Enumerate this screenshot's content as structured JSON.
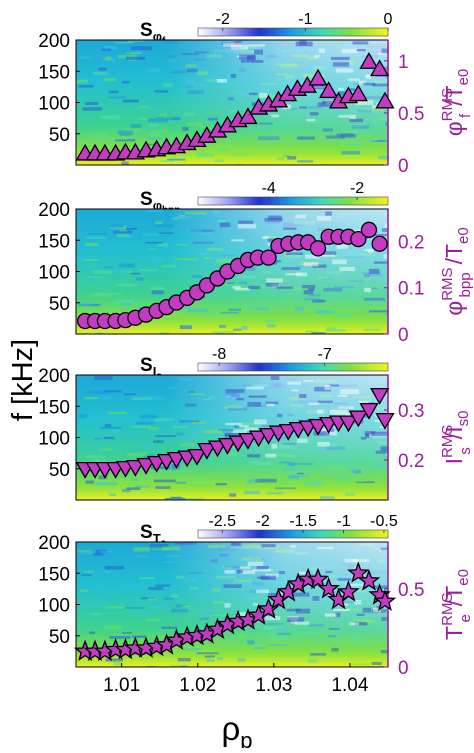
{
  "figure": {
    "ylabel": "f [kHz]",
    "xlabel": "ρ",
    "xlabel_sub": "p"
  },
  "chart_data": [
    {
      "type": "heatmap",
      "colorbar_label": "S",
      "colorbar_label_sub": "φ",
      "colorbar_label_subsub": "f",
      "colorbar_ticks": [
        "-2",
        "-1",
        "0"
      ],
      "colorbar_range": [
        -2.3,
        0
      ],
      "ylim": [
        0,
        200
      ],
      "yticks": [
        "200",
        "150",
        "100",
        "50"
      ],
      "xlim": [
        1.004,
        1.045
      ],
      "xticks": [],
      "y2label": "φ",
      "y2label_sup": "RMS",
      "y2label_sub": "f",
      "y2label_tail": "/T",
      "y2label_tail_sub": "e0",
      "y2lim": [
        0,
        1.2
      ],
      "y2ticks": [
        "1",
        "0.5",
        "0"
      ],
      "marker": "triangle-up",
      "marker_color": "#c23bc2",
      "axis_color": "#9b219b",
      "series": [
        {
          "x": [
            1.0052,
            1.0065,
            1.0078,
            1.0092,
            1.0105,
            1.0118,
            1.0132,
            1.0146,
            1.0159,
            1.0172,
            1.0186,
            1.0199,
            1.0212,
            1.0226,
            1.0239,
            1.0253,
            1.0266,
            1.028,
            1.0293,
            1.0306,
            1.0318,
            1.0331,
            1.0344,
            1.0358,
            1.0372,
            1.0385,
            1.0398,
            1.0411,
            1.0425,
            1.0439,
            1.0446
          ],
          "y": [
            0.11,
            0.11,
            0.11,
            0.11,
            0.12,
            0.12,
            0.14,
            0.15,
            0.17,
            0.18,
            0.21,
            0.24,
            0.28,
            0.33,
            0.38,
            0.43,
            0.46,
            0.55,
            0.58,
            0.62,
            0.68,
            0.73,
            0.76,
            0.83,
            0.71,
            0.61,
            0.66,
            0.68,
            0.99,
            0.92,
            0.61
          ]
        }
      ]
    },
    {
      "type": "heatmap",
      "colorbar_label": "S",
      "colorbar_label_sub": "φ",
      "colorbar_label_subsub": "bpp",
      "colorbar_ticks": [
        "-4",
        "-2"
      ],
      "colorbar_range": [
        -5.6,
        -1.3
      ],
      "ylim": [
        0,
        200
      ],
      "yticks": [
        "200",
        "150",
        "100",
        "50"
      ],
      "xlim": [
        1.004,
        1.045
      ],
      "xticks": [],
      "y2label": "φ",
      "y2label_sup": "RMS",
      "y2label_sub": "bpp",
      "y2label_tail": "/T",
      "y2label_tail_sub": "e0",
      "y2lim": [
        0,
        0.27
      ],
      "y2ticks": [
        "0.2",
        "0.1",
        "0"
      ],
      "marker": "circle",
      "marker_color": "#c23bc2",
      "axis_color": "#9b219b",
      "series": [
        {
          "x": [
            1.0052,
            1.0065,
            1.0078,
            1.0092,
            1.0105,
            1.0118,
            1.0132,
            1.0146,
            1.0159,
            1.0172,
            1.0186,
            1.0199,
            1.0212,
            1.0226,
            1.0239,
            1.0253,
            1.0266,
            1.0279,
            1.0293,
            1.0306,
            1.0319,
            1.0332,
            1.0345,
            1.0358,
            1.0372,
            1.0385,
            1.0398,
            1.0411,
            1.0425,
            1.0439
          ],
          "y": [
            0.028,
            0.028,
            0.028,
            0.028,
            0.03,
            0.035,
            0.042,
            0.05,
            0.058,
            0.068,
            0.078,
            0.09,
            0.105,
            0.12,
            0.135,
            0.147,
            0.16,
            0.165,
            0.165,
            0.19,
            0.195,
            0.198,
            0.198,
            0.185,
            0.21,
            0.21,
            0.21,
            0.205,
            0.225,
            0.195
          ]
        }
      ]
    },
    {
      "type": "heatmap",
      "colorbar_label": "S",
      "colorbar_label_sub": "I",
      "colorbar_label_subsub": "s",
      "colorbar_ticks": [
        "-8",
        "-7"
      ],
      "colorbar_range": [
        -8.2,
        -6.4
      ],
      "ylim": [
        0,
        200
      ],
      "yticks": [
        "200",
        "150",
        "100",
        "50"
      ],
      "xlim": [
        1.004,
        1.045
      ],
      "xticks": [],
      "y2label": "I",
      "y2label_sup": "RMS",
      "y2label_sub": "s",
      "y2label_tail": "/I",
      "y2label_tail_sub": "s0",
      "y2lim": [
        0.12,
        0.37
      ],
      "y2ticks": [
        "0.3",
        "0.2"
      ],
      "marker": "triangle-down",
      "marker_color": "#c23bc2",
      "axis_color": "#9b219b",
      "series": [
        {
          "x": [
            1.0052,
            1.0065,
            1.0078,
            1.0092,
            1.0105,
            1.0118,
            1.0132,
            1.0146,
            1.0159,
            1.0172,
            1.0186,
            1.0199,
            1.0212,
            1.0226,
            1.0239,
            1.0253,
            1.0266,
            1.028,
            1.0293,
            1.0306,
            1.0319,
            1.0332,
            1.0345,
            1.0358,
            1.0372,
            1.0385,
            1.0398,
            1.0411,
            1.0425,
            1.0439,
            1.0446
          ],
          "y": [
            0.182,
            0.182,
            0.182,
            0.182,
            0.184,
            0.186,
            0.19,
            0.194,
            0.198,
            0.202,
            0.205,
            0.208,
            0.22,
            0.225,
            0.23,
            0.235,
            0.24,
            0.245,
            0.25,
            0.255,
            0.258,
            0.262,
            0.265,
            0.268,
            0.272,
            0.275,
            0.275,
            0.285,
            0.3,
            0.33,
            0.28
          ]
        }
      ]
    },
    {
      "type": "heatmap",
      "colorbar_label": "S",
      "colorbar_label_sub": "T",
      "colorbar_label_subsub": "e",
      "colorbar_ticks": [
        "-2.5",
        "-2",
        "-1.5",
        "-1",
        "-0.5"
      ],
      "colorbar_range": [
        -2.8,
        -0.45
      ],
      "ylim": [
        0,
        200
      ],
      "yticks": [
        "200",
        "150",
        "100",
        "50"
      ],
      "xlim": [
        1.004,
        1.045
      ],
      "xticks": [
        "1.01",
        "1.02",
        "1.03",
        "1.04"
      ],
      "y2label": "T",
      "y2label_sup": "RMS",
      "y2label_sub": "e",
      "y2label_tail": "/T",
      "y2label_tail_sub": "e0",
      "y2lim": [
        0,
        0.8
      ],
      "y2ticks": [
        "0.5",
        "0"
      ],
      "marker": "star",
      "marker_color": "#c23bc2",
      "axis_color": "#9b219b",
      "series": [
        {
          "x": [
            1.0052,
            1.0065,
            1.0078,
            1.0092,
            1.0105,
            1.0118,
            1.0132,
            1.0146,
            1.0159,
            1.0172,
            1.0186,
            1.0199,
            1.0212,
            1.0226,
            1.0239,
            1.0253,
            1.0266,
            1.028,
            1.0293,
            1.0306,
            1.0319,
            1.0332,
            1.0345,
            1.0358,
            1.0372,
            1.0385,
            1.0398,
            1.0411,
            1.0425,
            1.0439,
            1.0446
          ],
          "y": [
            0.1,
            0.1,
            0.1,
            0.11,
            0.11,
            0.12,
            0.12,
            0.13,
            0.14,
            0.17,
            0.19,
            0.2,
            0.21,
            0.24,
            0.27,
            0.29,
            0.3,
            0.33,
            0.37,
            0.43,
            0.48,
            0.53,
            0.56,
            0.56,
            0.5,
            0.43,
            0.48,
            0.6,
            0.55,
            0.46,
            0.42
          ]
        }
      ]
    }
  ]
}
